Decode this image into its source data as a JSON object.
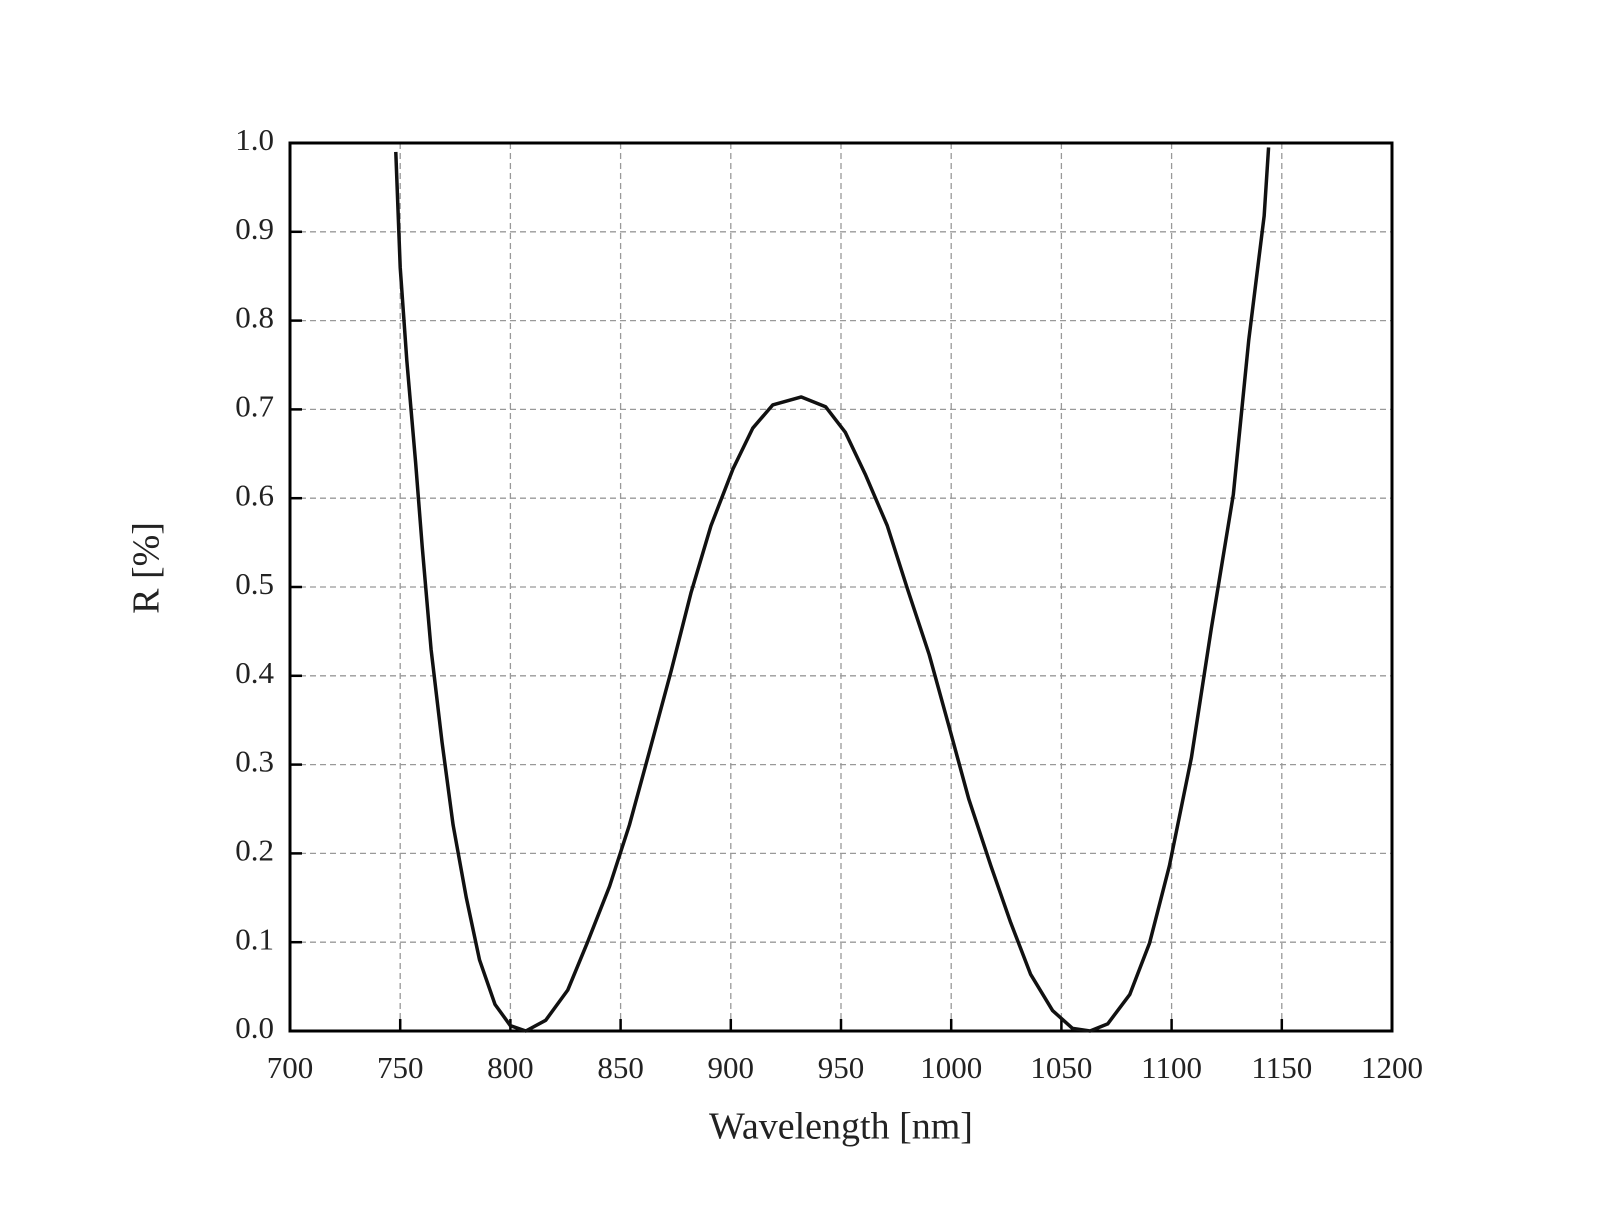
{
  "chart_data": {
    "type": "line",
    "xlabel": "Wavelength [nm]",
    "ylabel": "R [%]",
    "x": [
      748,
      750,
      753,
      757,
      760,
      764,
      769,
      774,
      780,
      786,
      793,
      800,
      807,
      816,
      826,
      835,
      845,
      854,
      863,
      873,
      882,
      891,
      901,
      910,
      919,
      932,
      943,
      952,
      961,
      971,
      980,
      990,
      999,
      1008,
      1018,
      1027,
      1036,
      1046,
      1055,
      1063,
      1071,
      1081,
      1090,
      1099,
      1109,
      1118,
      1128,
      1135,
      1142,
      1144
    ],
    "series": [
      {
        "color": "#111111",
        "values": [
          0.99,
          0.86,
          0.755,
          0.64,
          0.545,
          0.43,
          0.325,
          0.232,
          0.15,
          0.08,
          0.03,
          0.006,
          0.0,
          0.012,
          0.046,
          0.1,
          0.163,
          0.232,
          0.314,
          0.406,
          0.494,
          0.569,
          0.633,
          0.679,
          0.705,
          0.714,
          0.703,
          0.674,
          0.627,
          0.569,
          0.499,
          0.424,
          0.343,
          0.261,
          0.186,
          0.122,
          0.064,
          0.023,
          0.003,
          0.0,
          0.008,
          0.041,
          0.099,
          0.186,
          0.308,
          0.453,
          0.604,
          0.778,
          0.918,
          0.995
        ]
      }
    ],
    "xlim": [
      700,
      1200
    ],
    "xticks": [
      700,
      750,
      800,
      850,
      900,
      950,
      1000,
      1050,
      1100,
      1150,
      1200
    ],
    "ylim": [
      0,
      1
    ],
    "yticks": [
      {
        "value": 0,
        "label": "0.0"
      },
      0.1,
      0.2,
      0.3,
      0.4,
      0.5,
      0.6,
      0.7,
      0.8,
      0.9,
      {
        "value": 1,
        "label": "1.0"
      }
    ],
    "grid": true
  }
}
